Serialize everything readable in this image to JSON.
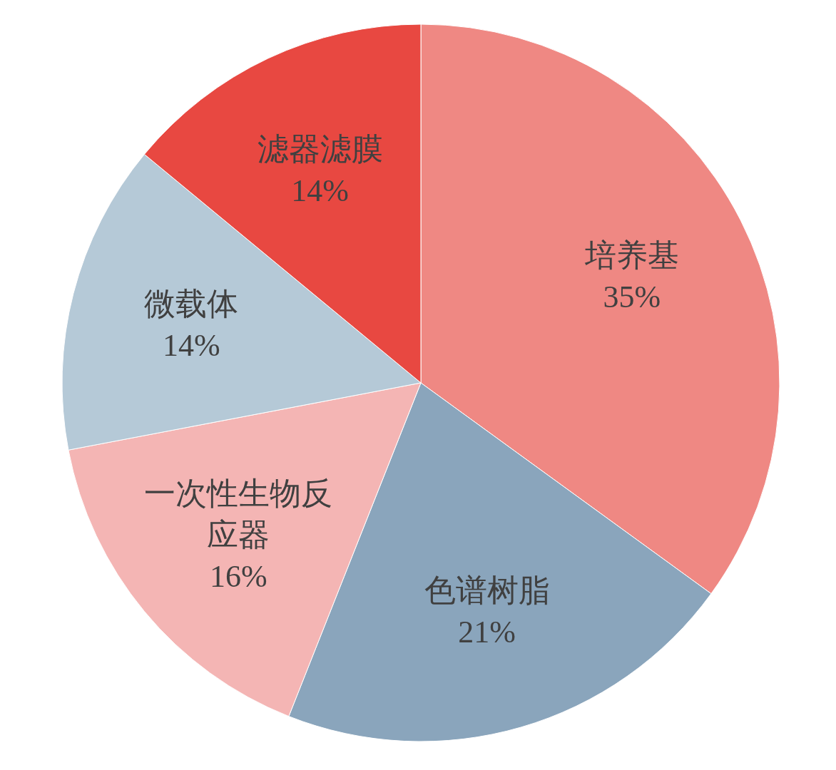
{
  "chart_data": {
    "type": "pie",
    "categories": [
      "培养基",
      "色谱树脂",
      "一次性生物反应器",
      "微载体",
      "滤器滤膜"
    ],
    "values": [
      35,
      21,
      16,
      14,
      14
    ],
    "value_labels": [
      "35%",
      "21%",
      "16%",
      "14%",
      "14%"
    ],
    "colors": [
      "#ef8883",
      "#8aa5bc",
      "#f4b5b4",
      "#b5c9d7",
      "#e84841"
    ]
  }
}
